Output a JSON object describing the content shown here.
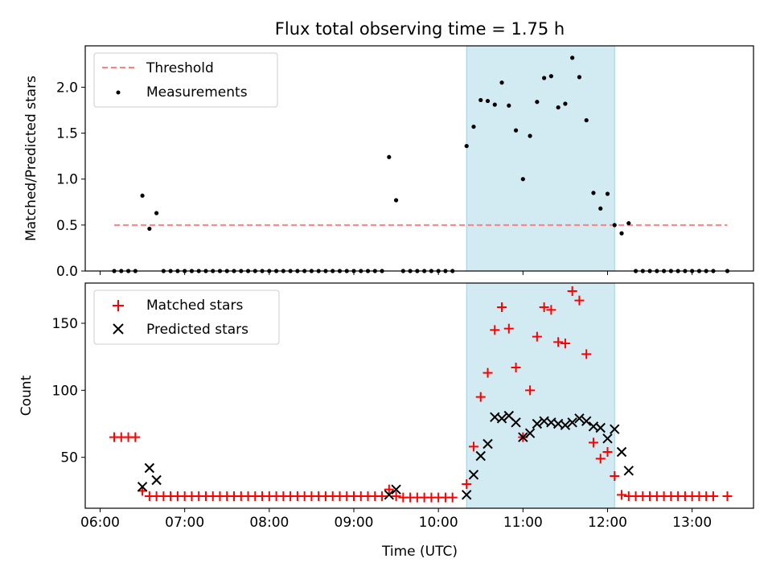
{
  "chart_data": {
    "type": "scatter",
    "title": "Flux total observing time = 1.75 h",
    "shaded_interval": [
      "10:20",
      "12:05"
    ],
    "shade_color": "#add8e6",
    "xlabel": "Time (UTC)",
    "x_ticks": [
      "06:00",
      "07:00",
      "08:00",
      "09:00",
      "10:00",
      "11:00",
      "12:00",
      "13:00"
    ],
    "panels": [
      {
        "ylabel": "Matched/Predicted stars",
        "ylim": [
          0,
          2.45
        ],
        "y_ticks": [
          "0.0",
          "0.5",
          "1.0",
          "1.5",
          "2.0"
        ],
        "legend": [
          "Threshold",
          "Measurements"
        ],
        "legend_position": "upper-left",
        "threshold": {
          "name": "Threshold",
          "y": 0.5,
          "x_range": [
            "06:10",
            "13:25"
          ],
          "color": "#ff7f7f"
        },
        "measurements": {
          "name": "Measurements",
          "color": "#000000",
          "points": [
            [
              "06:10",
              0
            ],
            [
              "06:15",
              0
            ],
            [
              "06:20",
              0
            ],
            [
              "06:25",
              0
            ],
            [
              "06:30",
              0.82
            ],
            [
              "06:35",
              0.46
            ],
            [
              "06:40",
              0.63
            ],
            [
              "06:45",
              0
            ],
            [
              "06:50",
              0
            ],
            [
              "06:55",
              0
            ],
            [
              "07:00",
              0
            ],
            [
              "07:05",
              0
            ],
            [
              "07:10",
              0
            ],
            [
              "07:15",
              0
            ],
            [
              "07:20",
              0
            ],
            [
              "07:25",
              0
            ],
            [
              "07:30",
              0
            ],
            [
              "07:35",
              0
            ],
            [
              "07:40",
              0
            ],
            [
              "07:45",
              0
            ],
            [
              "07:50",
              0
            ],
            [
              "07:55",
              0
            ],
            [
              "08:00",
              0
            ],
            [
              "08:05",
              0
            ],
            [
              "08:10",
              0
            ],
            [
              "08:15",
              0
            ],
            [
              "08:20",
              0
            ],
            [
              "08:25",
              0
            ],
            [
              "08:30",
              0
            ],
            [
              "08:35",
              0
            ],
            [
              "08:40",
              0
            ],
            [
              "08:45",
              0
            ],
            [
              "08:50",
              0
            ],
            [
              "08:55",
              0
            ],
            [
              "09:00",
              0
            ],
            [
              "09:05",
              0
            ],
            [
              "09:10",
              0
            ],
            [
              "09:15",
              0
            ],
            [
              "09:20",
              0
            ],
            [
              "09:25",
              1.24
            ],
            [
              "09:30",
              0.77
            ],
            [
              "09:35",
              0
            ],
            [
              "09:40",
              0
            ],
            [
              "09:45",
              0
            ],
            [
              "09:50",
              0
            ],
            [
              "09:55",
              0
            ],
            [
              "10:00",
              0
            ],
            [
              "10:05",
              0
            ],
            [
              "10:10",
              0
            ],
            [
              "10:20",
              1.36
            ],
            [
              "10:25",
              1.57
            ],
            [
              "10:30",
              1.86
            ],
            [
              "10:35",
              1.85
            ],
            [
              "10:40",
              1.81
            ],
            [
              "10:45",
              2.05
            ],
            [
              "10:50",
              1.8
            ],
            [
              "10:55",
              1.53
            ],
            [
              "11:00",
              1.0
            ],
            [
              "11:05",
              1.47
            ],
            [
              "11:10",
              1.84
            ],
            [
              "11:15",
              2.1
            ],
            [
              "11:20",
              2.12
            ],
            [
              "11:25",
              1.78
            ],
            [
              "11:30",
              1.82
            ],
            [
              "11:35",
              2.32
            ],
            [
              "11:40",
              2.11
            ],
            [
              "11:45",
              1.64
            ],
            [
              "11:50",
              0.85
            ],
            [
              "11:55",
              0.68
            ],
            [
              "12:00",
              0.84
            ],
            [
              "12:05",
              0.5
            ],
            [
              "12:10",
              0.41
            ],
            [
              "12:15",
              0.52
            ],
            [
              "12:20",
              0
            ],
            [
              "12:25",
              0
            ],
            [
              "12:30",
              0
            ],
            [
              "12:35",
              0
            ],
            [
              "12:40",
              0
            ],
            [
              "12:45",
              0
            ],
            [
              "12:50",
              0
            ],
            [
              "12:55",
              0
            ],
            [
              "13:00",
              0
            ],
            [
              "13:05",
              0
            ],
            [
              "13:10",
              0
            ],
            [
              "13:15",
              0
            ],
            [
              "13:25",
              0
            ]
          ]
        }
      },
      {
        "ylabel": "Count",
        "ylim": [
          12,
          180
        ],
        "y_ticks": [
          "50",
          "100",
          "150"
        ],
        "legend": [
          "Matched stars",
          "Predicted stars"
        ],
        "legend_position": "upper-left",
        "series": [
          {
            "name": "Matched stars",
            "marker": "plus",
            "color": "#ff0000",
            "points": [
              [
                "06:10",
                65
              ],
              [
                "06:15",
                65
              ],
              [
                "06:20",
                65
              ],
              [
                "06:25",
                65
              ],
              [
                "06:30",
                25
              ],
              [
                "06:35",
                21
              ],
              [
                "06:40",
                21
              ],
              [
                "06:45",
                21
              ],
              [
                "06:50",
                21
              ],
              [
                "06:55",
                21
              ],
              [
                "07:00",
                21
              ],
              [
                "07:05",
                21
              ],
              [
                "07:10",
                21
              ],
              [
                "07:15",
                21
              ],
              [
                "07:20",
                21
              ],
              [
                "07:25",
                21
              ],
              [
                "07:30",
                21
              ],
              [
                "07:35",
                21
              ],
              [
                "07:40",
                21
              ],
              [
                "07:45",
                21
              ],
              [
                "07:50",
                21
              ],
              [
                "07:55",
                21
              ],
              [
                "08:00",
                21
              ],
              [
                "08:05",
                21
              ],
              [
                "08:10",
                21
              ],
              [
                "08:15",
                21
              ],
              [
                "08:20",
                21
              ],
              [
                "08:25",
                21
              ],
              [
                "08:30",
                21
              ],
              [
                "08:35",
                21
              ],
              [
                "08:40",
                21
              ],
              [
                "08:45",
                21
              ],
              [
                "08:50",
                21
              ],
              [
                "08:55",
                21
              ],
              [
                "09:00",
                21
              ],
              [
                "09:05",
                21
              ],
              [
                "09:10",
                21
              ],
              [
                "09:15",
                21
              ],
              [
                "09:20",
                21
              ],
              [
                "09:25",
                26
              ],
              [
                "09:30",
                21
              ],
              [
                "09:35",
                20
              ],
              [
                "09:40",
                20
              ],
              [
                "09:45",
                20
              ],
              [
                "09:50",
                20
              ],
              [
                "09:55",
                20
              ],
              [
                "10:00",
                20
              ],
              [
                "10:05",
                20
              ],
              [
                "10:10",
                20
              ],
              [
                "10:20",
                30
              ],
              [
                "10:25",
                58
              ],
              [
                "10:30",
                95
              ],
              [
                "10:35",
                113
              ],
              [
                "10:40",
                145
              ],
              [
                "10:45",
                162
              ],
              [
                "10:50",
                146
              ],
              [
                "10:55",
                117
              ],
              [
                "11:00",
                65
              ],
              [
                "11:05",
                100
              ],
              [
                "11:10",
                140
              ],
              [
                "11:15",
                162
              ],
              [
                "11:20",
                160
              ],
              [
                "11:25",
                136
              ],
              [
                "11:30",
                135
              ],
              [
                "11:35",
                174
              ],
              [
                "11:40",
                167
              ],
              [
                "11:45",
                127
              ],
              [
                "11:50",
                61
              ],
              [
                "11:55",
                49
              ],
              [
                "12:00",
                54
              ],
              [
                "12:05",
                36
              ],
              [
                "12:10",
                22
              ],
              [
                "12:15",
                21
              ],
              [
                "12:20",
                21
              ],
              [
                "12:25",
                21
              ],
              [
                "12:30",
                21
              ],
              [
                "12:35",
                21
              ],
              [
                "12:40",
                21
              ],
              [
                "12:45",
                21
              ],
              [
                "12:50",
                21
              ],
              [
                "12:55",
                21
              ],
              [
                "13:00",
                21
              ],
              [
                "13:05",
                21
              ],
              [
                "13:10",
                21
              ],
              [
                "13:15",
                21
              ],
              [
                "13:25",
                21
              ]
            ]
          },
          {
            "name": "Predicted stars",
            "marker": "x",
            "color": "#000000",
            "points": [
              [
                "06:30",
                28
              ],
              [
                "06:35",
                42
              ],
              [
                "06:40",
                33
              ],
              [
                "09:25",
                22
              ],
              [
                "09:30",
                26
              ],
              [
                "10:20",
                22
              ],
              [
                "10:25",
                37
              ],
              [
                "10:30",
                51
              ],
              [
                "10:35",
                60
              ],
              [
                "10:40",
                80
              ],
              [
                "10:45",
                79
              ],
              [
                "10:50",
                81
              ],
              [
                "10:55",
                76
              ],
              [
                "11:00",
                65
              ],
              [
                "11:05",
                68
              ],
              [
                "11:10",
                75
              ],
              [
                "11:15",
                77
              ],
              [
                "11:20",
                76
              ],
              [
                "11:25",
                75
              ],
              [
                "11:30",
                74
              ],
              [
                "11:35",
                76
              ],
              [
                "11:40",
                79
              ],
              [
                "11:45",
                77
              ],
              [
                "11:50",
                73
              ],
              [
                "11:55",
                72
              ],
              [
                "12:00",
                64
              ],
              [
                "12:05",
                71
              ],
              [
                "12:10",
                54
              ],
              [
                "12:15",
                40
              ]
            ]
          }
        ]
      }
    ]
  }
}
